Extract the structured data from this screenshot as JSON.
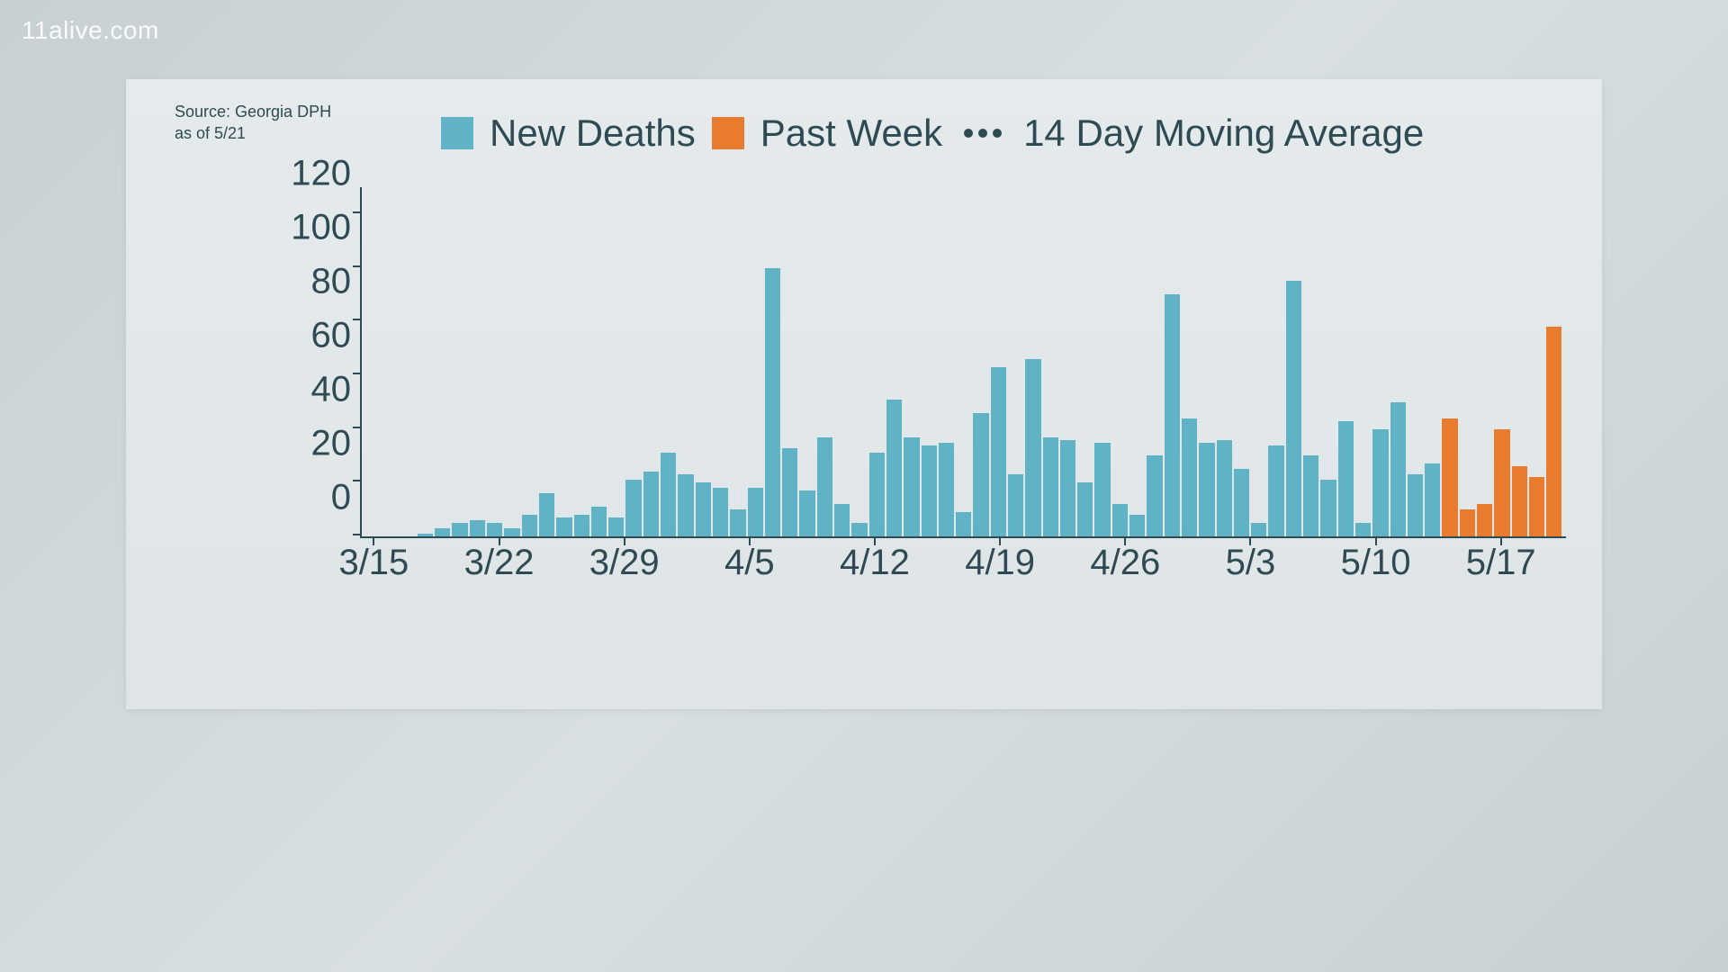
{
  "watermark": "11alive.com",
  "source_line1": "Source: Georgia DPH",
  "source_line2": "as of 5/21",
  "legend": {
    "series1_label": "New Deaths",
    "series2_label": "Past Week",
    "series3_label": "14 Day Moving Average"
  },
  "chart": {
    "type": "bar",
    "ylim": [
      0,
      130
    ],
    "ytick_step": 20,
    "yticks": [
      0,
      20,
      40,
      60,
      80,
      100,
      120
    ],
    "xticks": [
      "3/15",
      "3/22",
      "3/29",
      "4/5",
      "4/12",
      "4/19",
      "4/26",
      "5/3",
      "5/10",
      "5/17"
    ],
    "xtick_positions_pct": [
      1,
      11.4,
      21.8,
      32.2,
      42.6,
      53.0,
      63.4,
      73.8,
      84.2,
      94.6
    ],
    "colors": {
      "new_deaths": "#5fb3c4",
      "past_week": "#e87b2e",
      "axis": "#2e4a52",
      "text": "#2e4a52",
      "card_bg_top": "#e5eaec",
      "card_bg_bottom": "#dfe5e7",
      "page_bg": "#d0d7da"
    },
    "font_family": "Arial",
    "axis_label_fontsize_pt": 30,
    "legend_fontsize_pt": 32,
    "source_fontsize_pt": 14,
    "bars": [
      {
        "v": 0,
        "c": "new_deaths"
      },
      {
        "v": 0,
        "c": "new_deaths"
      },
      {
        "v": 0,
        "c": "new_deaths"
      },
      {
        "v": 1,
        "c": "new_deaths"
      },
      {
        "v": 3,
        "c": "new_deaths"
      },
      {
        "v": 5,
        "c": "new_deaths"
      },
      {
        "v": 6,
        "c": "new_deaths"
      },
      {
        "v": 5,
        "c": "new_deaths"
      },
      {
        "v": 3,
        "c": "new_deaths"
      },
      {
        "v": 8,
        "c": "new_deaths"
      },
      {
        "v": 16,
        "c": "new_deaths"
      },
      {
        "v": 7,
        "c": "new_deaths"
      },
      {
        "v": 8,
        "c": "new_deaths"
      },
      {
        "v": 11,
        "c": "new_deaths"
      },
      {
        "v": 7,
        "c": "new_deaths"
      },
      {
        "v": 21,
        "c": "new_deaths"
      },
      {
        "v": 24,
        "c": "new_deaths"
      },
      {
        "v": 31,
        "c": "new_deaths"
      },
      {
        "v": 23,
        "c": "new_deaths"
      },
      {
        "v": 20,
        "c": "new_deaths"
      },
      {
        "v": 18,
        "c": "new_deaths"
      },
      {
        "v": 10,
        "c": "new_deaths"
      },
      {
        "v": 18,
        "c": "new_deaths"
      },
      {
        "v": 100,
        "c": "new_deaths"
      },
      {
        "v": 33,
        "c": "new_deaths"
      },
      {
        "v": 17,
        "c": "new_deaths"
      },
      {
        "v": 37,
        "c": "new_deaths"
      },
      {
        "v": 12,
        "c": "new_deaths"
      },
      {
        "v": 5,
        "c": "new_deaths"
      },
      {
        "v": 31,
        "c": "new_deaths"
      },
      {
        "v": 51,
        "c": "new_deaths"
      },
      {
        "v": 37,
        "c": "new_deaths"
      },
      {
        "v": 34,
        "c": "new_deaths"
      },
      {
        "v": 35,
        "c": "new_deaths"
      },
      {
        "v": 9,
        "c": "new_deaths"
      },
      {
        "v": 46,
        "c": "new_deaths"
      },
      {
        "v": 63,
        "c": "new_deaths"
      },
      {
        "v": 23,
        "c": "new_deaths"
      },
      {
        "v": 66,
        "c": "new_deaths"
      },
      {
        "v": 37,
        "c": "new_deaths"
      },
      {
        "v": 36,
        "c": "new_deaths"
      },
      {
        "v": 20,
        "c": "new_deaths"
      },
      {
        "v": 35,
        "c": "new_deaths"
      },
      {
        "v": 12,
        "c": "new_deaths"
      },
      {
        "v": 8,
        "c": "new_deaths"
      },
      {
        "v": 30,
        "c": "new_deaths"
      },
      {
        "v": 90,
        "c": "new_deaths"
      },
      {
        "v": 44,
        "c": "new_deaths"
      },
      {
        "v": 35,
        "c": "new_deaths"
      },
      {
        "v": 36,
        "c": "new_deaths"
      },
      {
        "v": 25,
        "c": "new_deaths"
      },
      {
        "v": 5,
        "c": "new_deaths"
      },
      {
        "v": 34,
        "c": "new_deaths"
      },
      {
        "v": 95,
        "c": "new_deaths"
      },
      {
        "v": 30,
        "c": "new_deaths"
      },
      {
        "v": 21,
        "c": "new_deaths"
      },
      {
        "v": 43,
        "c": "new_deaths"
      },
      {
        "v": 5,
        "c": "new_deaths"
      },
      {
        "v": 40,
        "c": "new_deaths"
      },
      {
        "v": 50,
        "c": "new_deaths"
      },
      {
        "v": 23,
        "c": "new_deaths"
      },
      {
        "v": 27,
        "c": "new_deaths"
      },
      {
        "v": 44,
        "c": "past_week"
      },
      {
        "v": 10,
        "c": "past_week"
      },
      {
        "v": 12,
        "c": "past_week"
      },
      {
        "v": 40,
        "c": "past_week"
      },
      {
        "v": 26,
        "c": "past_week"
      },
      {
        "v": 22,
        "c": "past_week"
      },
      {
        "v": 78,
        "c": "past_week"
      }
    ]
  }
}
